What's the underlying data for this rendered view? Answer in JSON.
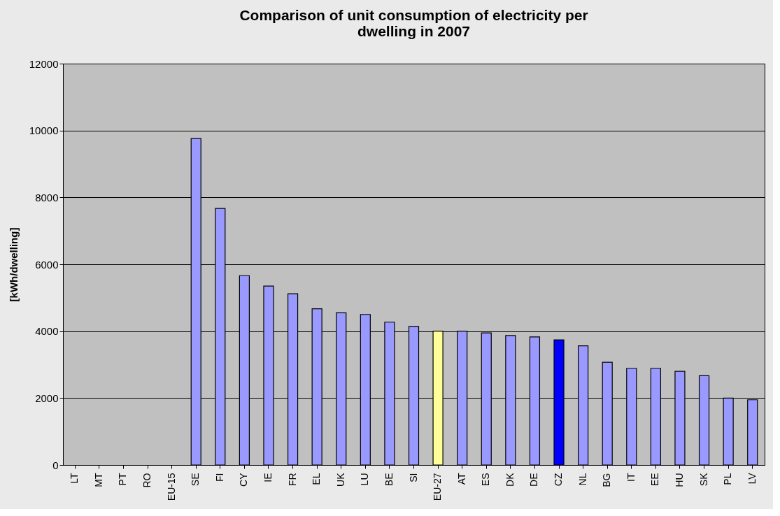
{
  "chart_data": {
    "type": "bar",
    "title": "Comparison of unit consumption of electricity per dwelling in 2007",
    "ylabel": "[kWh/dwelling]",
    "categories": [
      "LT",
      "MT",
      "PT",
      "RO",
      "EU-15",
      "SE",
      "FI",
      "CY",
      "IE",
      "FR",
      "EL",
      "UK",
      "LU",
      "BE",
      "SI",
      "EU-27",
      "AT",
      "ES",
      "DK",
      "DE",
      "CZ",
      "NL",
      "BG",
      "IT",
      "EE",
      "HU",
      "SK",
      "PL",
      "LV"
    ],
    "values": [
      null,
      null,
      null,
      null,
      null,
      9760,
      7670,
      5660,
      5350,
      5120,
      4670,
      4550,
      4500,
      4270,
      4140,
      4000,
      4000,
      3950,
      3870,
      3830,
      3740,
      3560,
      3070,
      2890,
      2890,
      2800,
      2670,
      2000,
      1950
    ],
    "colors": [
      "#9999ff",
      "#9999ff",
      "#9999ff",
      "#9999ff",
      "#9999ff",
      "#9999ff",
      "#9999ff",
      "#9999ff",
      "#9999ff",
      "#9999ff",
      "#9999ff",
      "#9999ff",
      "#9999ff",
      "#9999ff",
      "#9999ff",
      "#ffff99",
      "#9999ff",
      "#9999ff",
      "#9999ff",
      "#9999ff",
      "#0000ff",
      "#9999ff",
      "#9999ff",
      "#9999ff",
      "#9999ff",
      "#9999ff",
      "#9999ff",
      "#9999ff",
      "#9999ff"
    ],
    "ylim": [
      0,
      12000
    ],
    "yticks": [
      0,
      2000,
      4000,
      6000,
      8000,
      10000,
      12000
    ],
    "grid": "y"
  }
}
